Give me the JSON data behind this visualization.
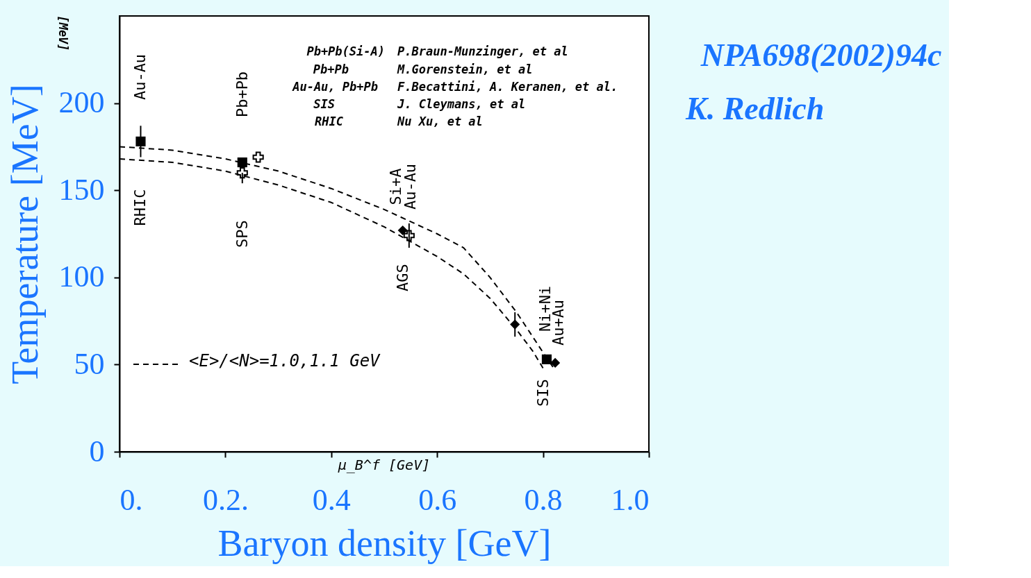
{
  "chart_data": {
    "type": "scatter",
    "xlabel": "Baryon density [GeV]",
    "ylabel": "Temperature [MeV]",
    "xlim": [
      0,
      1.0
    ],
    "ylim": [
      0,
      250
    ],
    "xticks": [
      {
        "value": 0,
        "label": "0."
      },
      {
        "value": 0.2,
        "label": "0.2."
      },
      0.4,
      0.6,
      0.8,
      {
        "value": 1.0,
        "label": "1.0"
      }
    ],
    "yticks": [
      0,
      50,
      100,
      150,
      200
    ],
    "grid": false,
    "legend": "bottom left",
    "series": [
      {
        "type": "line",
        "name": "<E>/<N>=1.0,1.1 GeV",
        "color": "#000000",
        "line_style": "dashed",
        "x": [
          0,
          0.1,
          0.2,
          0.3,
          0.4,
          0.5,
          0.6,
          0.65,
          0.7,
          0.75,
          0.8,
          0.82
        ],
        "values": [
          175,
          173,
          168,
          161,
          151,
          139,
          125,
          117,
          100,
          80,
          57,
          48
        ]
      },
      {
        "type": "line",
        "color": "#000000",
        "line_style": "dashed",
        "x": [
          0,
          0.1,
          0.2,
          0.3,
          0.4,
          0.5,
          0.6,
          0.65,
          0.7,
          0.75,
          0.78,
          0.8
        ],
        "values": [
          168,
          166,
          161,
          153,
          143,
          129,
          112,
          102,
          88,
          70,
          58,
          48
        ]
      },
      {
        "marker": "square",
        "color": "#000000",
        "x": [
          0.04,
          0.232,
          0.807
        ],
        "values": [
          178,
          166,
          53
        ],
        "errors": [
          [
            169,
            187
          ],
          null,
          null
        ]
      },
      {
        "marker": "diamond",
        "color": "#000000",
        "x": [
          0.535,
          0.747,
          0.823
        ],
        "values": [
          127,
          73,
          51
        ],
        "errors": [
          null,
          [
            66,
            80
          ],
          null
        ]
      },
      {
        "marker": "cross",
        "color": "#000000",
        "x": [
          0.232,
          0.262,
          0.547
        ],
        "values": [
          160,
          169,
          124
        ],
        "errors": [
          [
            154,
            160
          ],
          null,
          [
            117,
            131
          ]
        ]
      }
    ],
    "annotations": [
      "Pb+Pb(Si-A)",
      "Pb+Pb",
      "Au-Au, Pb+Pb",
      "SIS",
      "RHIC",
      "P.Braun-Munzinger, et al",
      "M.Gorenstein, et al",
      "F.Becattini, A. Keranen, et al.",
      "J. Cleymans, et al",
      "Nu  Xu, et al",
      "[MeV]",
      "μ_B^f [GeV]",
      "NPA698(2002)94c",
      "K. Redlich",
      "Au-Au",
      "RHIC",
      "Pb+Pb",
      "SPS",
      "Si+A",
      "Au-Au",
      "AGS",
      "Ni+Ni",
      "Au+Au",
      "SIS"
    ]
  }
}
